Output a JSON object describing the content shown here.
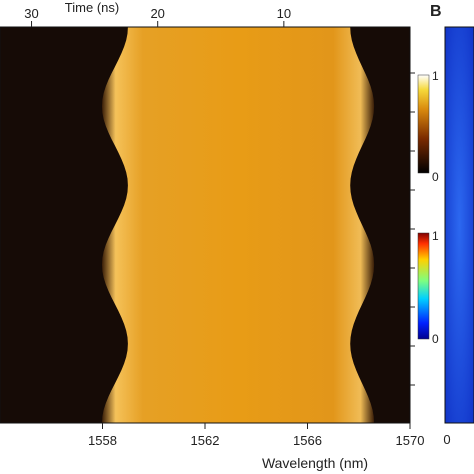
{
  "chart_data": {
    "type": "heatmap",
    "panel_letter": "B",
    "xlabel": "Wavelength (nm)",
    "x_ticks": [
      1558,
      1562,
      1566,
      1570
    ],
    "xlim": [
      1554,
      1570
    ],
    "top_axis_label": "Time (ns)",
    "top_ticks": [
      30,
      20,
      10
    ],
    "top_axis_range": [
      32.5,
      0
    ],
    "color_scale_hot": {
      "min": 0,
      "max": 1,
      "min_label": "0",
      "max_label": "1"
    },
    "color_scale_jet": {
      "min": 0,
      "max": 1,
      "min_label": "0",
      "max_label": "1"
    },
    "pulse_envelope": {
      "center_nm": 1563.5,
      "half_width_nm": [
        4.9,
        6.0
      ],
      "modulation_cycles": 2.5
    },
    "side_panel_x_label": "0"
  },
  "colors": {
    "background_dark": "#160b06",
    "pulse_core": "#e79b15",
    "pulse_edge": "#f7c85a",
    "jet_blue": "#1440d8"
  }
}
